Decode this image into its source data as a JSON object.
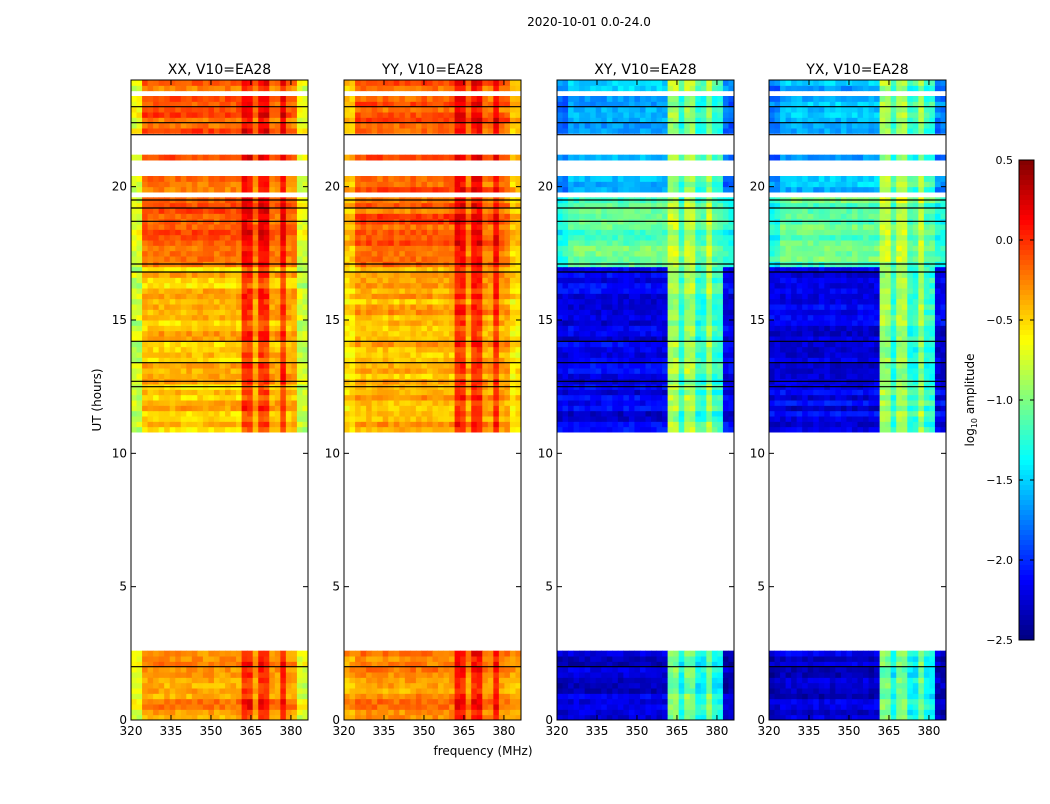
{
  "chart_data": {
    "type": "heatmap",
    "title": "2020-10-01 0.0-24.0",
    "xlabel": "frequency (MHz)",
    "ylabel": "UT (hours)",
    "xlim": [
      320,
      386.4
    ],
    "ylim": [
      0,
      24
    ],
    "xticks": [
      320,
      335,
      350,
      365,
      380
    ],
    "yticks": [
      0,
      5,
      10,
      15,
      20
    ],
    "colorbar": {
      "label_main": "log",
      "label_sub": "10",
      "label_rest": " amplitude",
      "range": [
        -2.5,
        0.5
      ],
      "ticks": [
        "0.5",
        "0.0",
        "−0.5",
        "−1.0",
        "−1.5",
        "−2.0",
        "−2.5"
      ],
      "tick_values": [
        0.5,
        0.0,
        -0.5,
        -1.0,
        -1.5,
        -2.0,
        -2.5
      ],
      "colormap": "jet"
    },
    "time_coverage_hours": [
      [
        0,
        2.6
      ],
      [
        10.8,
        24
      ]
    ],
    "flagged_hours": [
      [
        0.4,
        0.5
      ],
      [
        1.6,
        1.7
      ],
      [
        19.6,
        19.75
      ],
      [
        20.3,
        20.9
      ],
      [
        21.1,
        22.0
      ],
      [
        22.7,
        22.8
      ],
      [
        23.3,
        23.5
      ]
    ],
    "separator_lines_hours": [
      2.0,
      12.5,
      12.7,
      13.4,
      14.2,
      16.8,
      17.1,
      18.7,
      19.2,
      19.5,
      21.95,
      22.4,
      23.0
    ],
    "panels": [
      {
        "title": "XX, V10=EA28",
        "regions": [
          {
            "t": [
              0,
              2.6
            ],
            "edge": -0.7,
            "continuum": -0.3,
            "band": -0.05
          },
          {
            "t": [
              10.8,
              17
            ],
            "edge": -0.8,
            "continuum": -0.45,
            "band": -0.15
          },
          {
            "t": [
              17,
              24
            ],
            "edge": -0.7,
            "continuum": -0.15,
            "band": 0.05
          }
        ]
      },
      {
        "title": "YY, V10=EA28",
        "regions": [
          {
            "t": [
              0,
              2.6
            ],
            "edge": -0.4,
            "continuum": -0.3,
            "band": -0.05
          },
          {
            "t": [
              10.8,
              17
            ],
            "edge": -0.55,
            "continuum": -0.4,
            "band": -0.1
          },
          {
            "t": [
              17,
              24
            ],
            "edge": -0.45,
            "continuum": -0.15,
            "band": 0.05
          }
        ]
      },
      {
        "title": "XY, V10=EA28",
        "regions": [
          {
            "t": [
              0,
              2.6
            ],
            "edge": -2.3,
            "continuum": -2.25,
            "band": -1.1
          },
          {
            "t": [
              10.8,
              17
            ],
            "edge": -2.2,
            "continuum": -2.2,
            "band": -1.0
          },
          {
            "t": [
              17,
              19.6
            ],
            "edge": -1.3,
            "continuum": -1.1,
            "band": -0.9
          },
          {
            "t": [
              19.6,
              24
            ],
            "edge": -1.8,
            "continuum": -1.6,
            "band": -1.0
          }
        ]
      },
      {
        "title": "YX, V10=EA28",
        "regions": [
          {
            "t": [
              0,
              2.6
            ],
            "edge": -2.3,
            "continuum": -2.25,
            "band": -1.1
          },
          {
            "t": [
              10.8,
              17
            ],
            "edge": -2.2,
            "continuum": -2.2,
            "band": -1.0
          },
          {
            "t": [
              17,
              19.6
            ],
            "edge": -1.3,
            "continuum": -1.1,
            "band": -0.9
          },
          {
            "t": [
              19.6,
              24
            ],
            "edge": -1.8,
            "continuum": -1.6,
            "band": -1.0
          }
        ]
      }
    ]
  }
}
